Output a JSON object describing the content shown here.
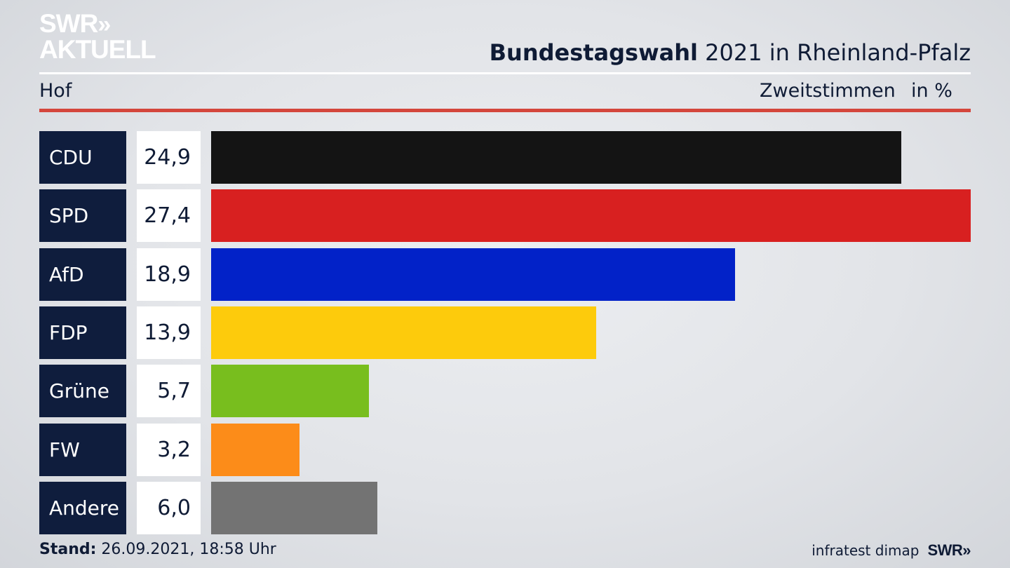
{
  "brand": {
    "logo_line1": "SWR",
    "logo_chevrons": "»",
    "logo_line2": "AKTUELL"
  },
  "header": {
    "title_bold": "Bundestagswahl",
    "title_rest": " 2021 in Rheinland-Pfalz",
    "region": "Hof",
    "column_label": "Zweitstimmen",
    "unit": "in %"
  },
  "chart_data": {
    "type": "bar",
    "orientation": "horizontal",
    "categories": [
      "CDU",
      "SPD",
      "AfD",
      "FDP",
      "Grüne",
      "FW",
      "Andere"
    ],
    "values": [
      24.9,
      27.4,
      18.9,
      13.9,
      5.7,
      3.2,
      6.0
    ],
    "value_labels": [
      "24,9",
      "27,4",
      "18,9",
      "13,9",
      "5,7",
      "3,2",
      "6,0"
    ],
    "colors": [
      "#141414",
      "#d82020",
      "#0222c8",
      "#fdcb0c",
      "#78be1e",
      "#fc8c19",
      "#737373"
    ],
    "xlim": [
      0,
      27.4
    ],
    "ylabel": "Zweitstimmen",
    "unit": "in %",
    "grid": false,
    "legend": "none"
  },
  "footer": {
    "stand_label": "Stand:",
    "stand_value": " 26.09.2021, 18:58 Uhr",
    "source": "infratest dimap",
    "swr_logo": "SWR»"
  }
}
